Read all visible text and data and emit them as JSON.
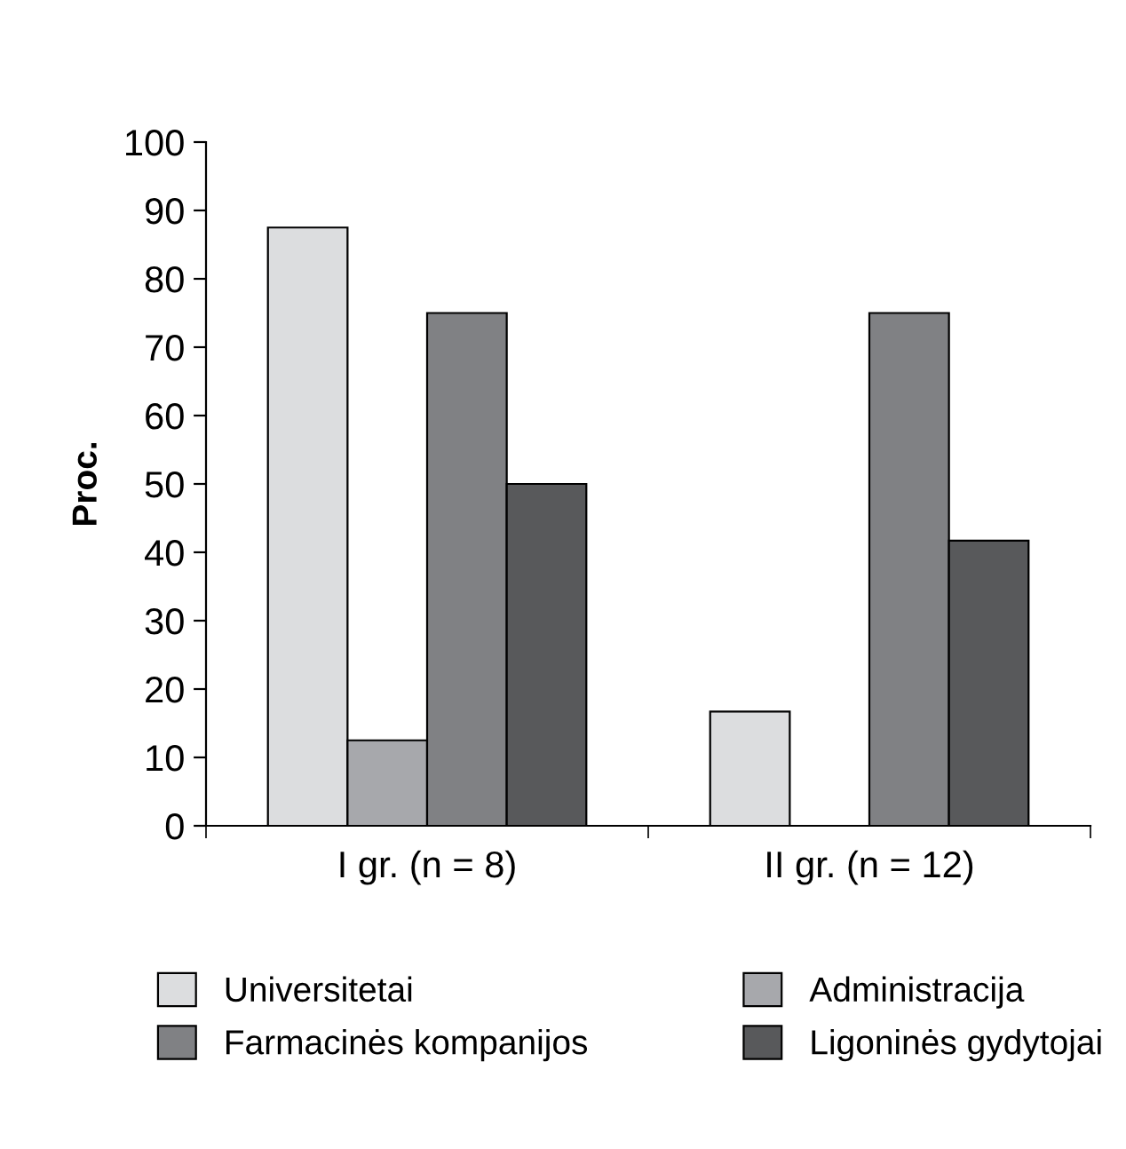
{
  "chart_data": {
    "type": "bar",
    "ylabel": "Proc.",
    "categories": [
      "I gr. (n = 8)",
      "II gr. (n = 12)"
    ],
    "series": [
      {
        "name": "Universitetai",
        "color": "#dcdddf",
        "values": [
          87.5,
          16.7
        ]
      },
      {
        "name": "Administracija",
        "color": "#a7a8ac",
        "values": [
          12.5,
          0
        ]
      },
      {
        "name": "Farmacinės kompanijos",
        "color": "#808184",
        "values": [
          75,
          75
        ]
      },
      {
        "name": "Ligoninės gydytojai",
        "color": "#58595b",
        "values": [
          50,
          41.7
        ]
      }
    ],
    "ylim": [
      0,
      100
    ],
    "yticks": [
      0,
      10,
      20,
      30,
      40,
      50,
      60,
      70,
      80,
      90,
      100
    ],
    "grid": false,
    "legend": "bottom"
  }
}
